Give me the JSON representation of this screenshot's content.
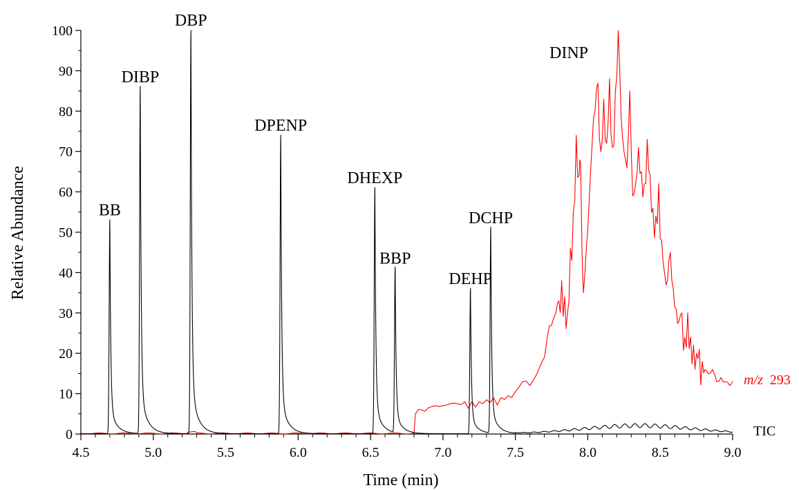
{
  "chart_data": {
    "type": "line",
    "xlabel": "Time (min)",
    "ylabel": "Relative Abundance",
    "xlim": [
      4.5,
      9.0
    ],
    "ylim": [
      0,
      100
    ],
    "x_ticks": [
      "4.5",
      "5.0",
      "5.5",
      "6.0",
      "6.5",
      "7.0",
      "7.5",
      "8.0",
      "8.5",
      "9.0"
    ],
    "y_ticks": [
      "0",
      "10",
      "20",
      "30",
      "40",
      "50",
      "60",
      "70",
      "80",
      "90",
      "100"
    ],
    "grid": false,
    "colors": {
      "tic": "#000000",
      "dinp": "#ff0000"
    },
    "series": [
      {
        "name": "TIC",
        "color": "#000000",
        "peaks": [
          {
            "label": "BB",
            "x": 4.7,
            "y": 53
          },
          {
            "label": "DIBP",
            "x": 4.91,
            "y": 86
          },
          {
            "label": "DBP",
            "x": 5.26,
            "y": 100
          },
          {
            "label": "DPENP",
            "x": 5.88,
            "y": 74
          },
          {
            "label": "DHEXP",
            "x": 6.53,
            "y": 61
          },
          {
            "label": "BBP",
            "x": 6.67,
            "y": 41
          },
          {
            "label": "DEHP",
            "x": 7.19,
            "y": 36
          },
          {
            "label": "DCHP",
            "x": 7.33,
            "y": 51
          }
        ],
        "baseline_hump": {
          "start": 7.5,
          "end": 9.0,
          "max_y": 2
        }
      },
      {
        "name": "m/z 293",
        "color": "#ff0000",
        "label": "DINP",
        "points": [
          [
            6.8,
            0.5
          ],
          [
            6.81,
            5
          ],
          [
            6.85,
            6
          ],
          [
            6.9,
            6.5
          ],
          [
            6.95,
            7
          ],
          [
            7.0,
            7
          ],
          [
            7.05,
            7.5
          ],
          [
            7.1,
            7.5
          ],
          [
            7.15,
            8
          ],
          [
            7.2,
            8
          ],
          [
            7.25,
            8
          ],
          [
            7.3,
            8.5
          ],
          [
            7.35,
            9
          ],
          [
            7.4,
            9
          ],
          [
            7.45,
            9.5
          ],
          [
            7.5,
            10.5
          ],
          [
            7.55,
            13
          ],
          [
            7.6,
            12
          ],
          [
            7.65,
            15
          ],
          [
            7.7,
            19
          ],
          [
            7.72,
            24
          ],
          [
            7.75,
            27
          ],
          [
            7.78,
            30
          ],
          [
            7.8,
            33
          ],
          [
            7.82,
            38
          ],
          [
            7.84,
            34
          ],
          [
            7.86,
            30
          ],
          [
            7.88,
            46
          ],
          [
            7.9,
            55
          ],
          [
            7.92,
            74
          ],
          [
            7.94,
            64
          ],
          [
            7.95,
            67
          ],
          [
            7.96,
            45
          ],
          [
            7.97,
            35
          ],
          [
            7.99,
            46
          ],
          [
            8.01,
            58
          ],
          [
            8.03,
            72
          ],
          [
            8.05,
            80
          ],
          [
            8.07,
            87
          ],
          [
            8.09,
            70
          ],
          [
            8.11,
            83
          ],
          [
            8.13,
            72
          ],
          [
            8.15,
            88
          ],
          [
            8.17,
            71
          ],
          [
            8.19,
            85
          ],
          [
            8.21,
            100
          ],
          [
            8.23,
            79
          ],
          [
            8.25,
            70
          ],
          [
            8.27,
            66
          ],
          [
            8.29,
            85
          ],
          [
            8.31,
            59
          ],
          [
            8.33,
            62
          ],
          [
            8.35,
            71
          ],
          [
            8.37,
            65
          ],
          [
            8.39,
            62
          ],
          [
            8.41,
            73
          ],
          [
            8.43,
            64
          ],
          [
            8.45,
            56
          ],
          [
            8.47,
            54
          ],
          [
            8.49,
            62
          ],
          [
            8.51,
            48
          ],
          [
            8.53,
            40
          ],
          [
            8.55,
            38
          ],
          [
            8.57,
            45
          ],
          [
            8.59,
            36
          ],
          [
            8.61,
            31
          ],
          [
            8.63,
            28
          ],
          [
            8.65,
            30
          ],
          [
            8.67,
            24
          ],
          [
            8.69,
            30
          ],
          [
            8.71,
            24
          ],
          [
            8.73,
            22
          ],
          [
            8.75,
            20
          ],
          [
            8.77,
            21
          ],
          [
            8.79,
            18
          ],
          [
            8.81,
            16
          ],
          [
            8.83,
            15
          ],
          [
            8.86,
            16
          ],
          [
            8.89,
            13
          ],
          [
            8.92,
            14
          ],
          [
            8.95,
            13
          ],
          [
            8.98,
            12
          ],
          [
            9.0,
            13
          ]
        ]
      }
    ],
    "annotations": {
      "dinp": "DINP",
      "mz_italic": "m/z",
      "mz_value": "293",
      "tic": "TIC"
    }
  }
}
